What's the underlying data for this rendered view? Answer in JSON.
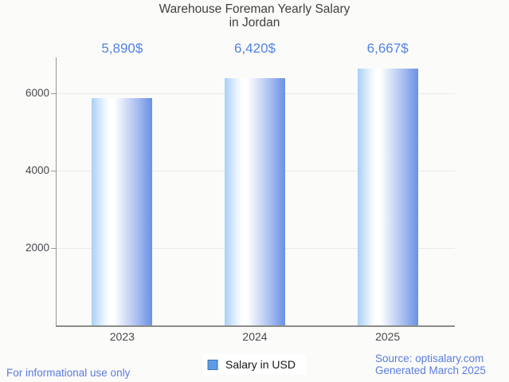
{
  "chart_data": {
    "type": "bar",
    "title": "Warehouse Foreman Yearly Salary in Jordan",
    "title_line1": "Warehouse Foreman Yearly Salary",
    "title_line2": "in Jordan",
    "categories": [
      "2023",
      "2024",
      "2025"
    ],
    "series": [
      {
        "name": "Salary in USD",
        "values": [
          5890,
          6420,
          6667
        ]
      }
    ],
    "values": [
      5890,
      6420,
      6667
    ],
    "value_labels": [
      "5,890$",
      "6,420$",
      "6,667$"
    ],
    "legend": "Salary in USD",
    "legend_position": "bottom-center",
    "xlabel": "",
    "ylabel": "",
    "yticks": [
      2000,
      4000,
      6000
    ],
    "ylim": [
      0,
      6950
    ],
    "grid": true
  },
  "footer": {
    "disclaimer": "For informational use only",
    "source": "Source: optisalary.com",
    "generated": "Generated March 2025"
  },
  "colors": {
    "background": "#fbfbf9",
    "title_text": "#404040",
    "axis_text": "#47494c",
    "value_label_text": "#5283e2",
    "footer_text": "#5b7ce0",
    "bar_gradient_start": "#a7d0f8",
    "bar_gradient_mid": "#ffffff",
    "bar_gradient_end": "#6b92e8",
    "legend_swatch": "#5c9ce6",
    "legend_swatch_border": "#4176b4",
    "gridline": "#ebebe8",
    "axis_line": "#8f8f8b",
    "legend_background": "#ffffff"
  }
}
